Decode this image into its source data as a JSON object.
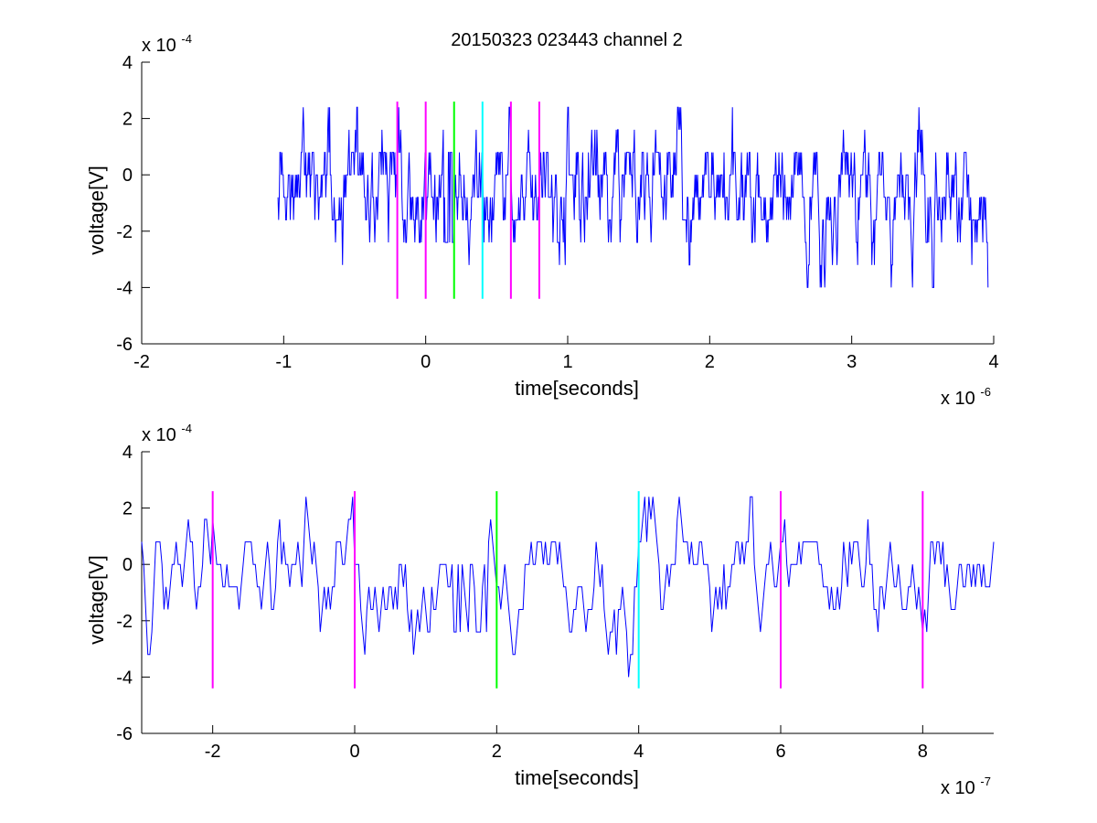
{
  "figure": {
    "title": "20150323 023443 channel 2"
  },
  "chart_data": [
    {
      "type": "line",
      "title": "20150323 023443 channel 2",
      "xlabel": "time[seconds]",
      "ylabel": "voltage[V]",
      "x_multiplier": "x 10",
      "x_exponent": "-6",
      "y_multiplier": "x 10",
      "y_exponent": "-4",
      "xlim": [
        -2,
        4
      ],
      "ylim": [
        -6,
        4
      ],
      "xticks": [
        -2,
        -1,
        0,
        1,
        2,
        3,
        4
      ],
      "yticks": [
        -6,
        -4,
        -2,
        0,
        2,
        4
      ],
      "grid": false,
      "series": [
        {
          "color": "#0000ff",
          "description": "dense noisy voltage trace, quantized near multiples of 0.8 (x1e-4)",
          "x_range": [
            -1.04,
            3.96
          ],
          "y_levels": [
            -4,
            -3.2,
            -2.4,
            -1.6,
            -0.8,
            0,
            0.8,
            1.6,
            2.4
          ],
          "y_range": [
            -4,
            2.4
          ]
        }
      ],
      "markers": [
        {
          "x": -0.2,
          "y_range": [
            -4.4,
            2.6
          ],
          "color": "#ff00ff"
        },
        {
          "x": 0.0,
          "y_range": [
            -4.4,
            2.6
          ],
          "color": "#ff00ff"
        },
        {
          "x": 0.2,
          "y_range": [
            -4.4,
            2.6
          ],
          "color": "#00ff00"
        },
        {
          "x": 0.4,
          "y_range": [
            -4.4,
            2.6
          ],
          "color": "#00ffff"
        },
        {
          "x": 0.6,
          "y_range": [
            -4.4,
            2.6
          ],
          "color": "#ff00ff"
        },
        {
          "x": 0.8,
          "y_range": [
            -4.4,
            2.6
          ],
          "color": "#ff00ff"
        }
      ]
    },
    {
      "type": "line",
      "title": "",
      "xlabel": "time[seconds]",
      "ylabel": "voltage[V]",
      "x_multiplier": "x 10",
      "x_exponent": "-7",
      "y_multiplier": "x 10",
      "y_exponent": "-4",
      "xlim": [
        -3,
        9
      ],
      "ylim": [
        -6,
        4
      ],
      "xticks": [
        -2,
        0,
        2,
        4,
        6,
        8
      ],
      "yticks": [
        -6,
        -4,
        -2,
        0,
        2,
        4
      ],
      "grid": false,
      "series": [
        {
          "color": "#0000ff",
          "description": "zoomed voltage trace",
          "x_range": [
            -3,
            9
          ],
          "y_levels": [
            -4,
            -3.2,
            -2.4,
            -1.6,
            -0.8,
            0,
            0.8,
            1.6,
            2.4
          ],
          "y_range": [
            -4,
            2.4
          ]
        }
      ],
      "markers": [
        {
          "x": -2,
          "y_range": [
            -4.4,
            2.6
          ],
          "color": "#ff00ff"
        },
        {
          "x": 0,
          "y_range": [
            -4.4,
            2.6
          ],
          "color": "#ff00ff"
        },
        {
          "x": 2,
          "y_range": [
            -4.4,
            2.6
          ],
          "color": "#00ff00"
        },
        {
          "x": 4,
          "y_range": [
            -4.4,
            2.6
          ],
          "color": "#00ffff"
        },
        {
          "x": 6,
          "y_range": [
            -4.4,
            2.6
          ],
          "color": "#ff00ff"
        },
        {
          "x": 8,
          "y_range": [
            -4.4,
            2.6
          ],
          "color": "#ff00ff"
        }
      ]
    }
  ]
}
